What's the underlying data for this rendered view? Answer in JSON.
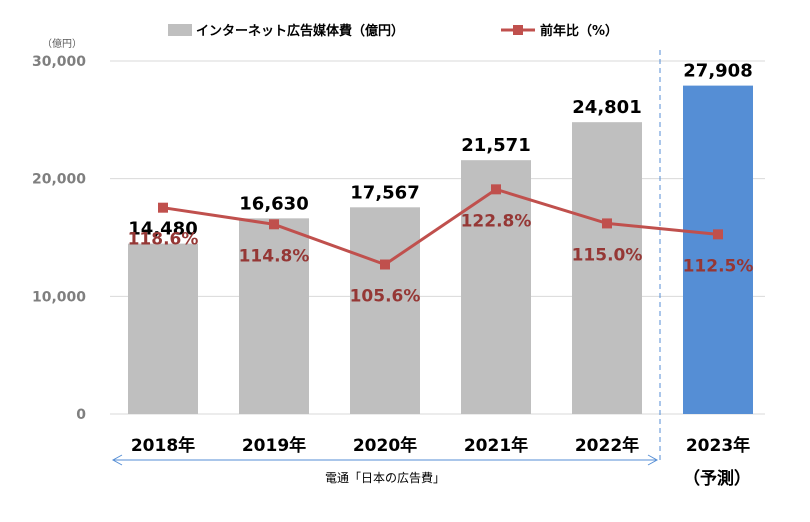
{
  "chart_data": {
    "type": "bar+line",
    "unit_label": "（億円）",
    "categories": [
      "2018年",
      "2019年",
      "2020年",
      "2021年",
      "2022年",
      "2023年"
    ],
    "forecast_note": "（予測）",
    "series": [
      {
        "name": "インターネット広告媒体費（億円）",
        "type": "bar",
        "values": [
          14480,
          16630,
          17567,
          21571,
          24801,
          27908
        ],
        "labels": [
          "14,480",
          "16,630",
          "17,567",
          "21,571",
          "24,801",
          "27,908"
        ],
        "color": "#bfbfbf",
        "forecast_color": "#558ed5"
      },
      {
        "name": "前年比（%）",
        "type": "line",
        "values": [
          118.6,
          114.8,
          105.6,
          122.8,
          115.0,
          112.5
        ],
        "labels": [
          "118.6%",
          "114.8%",
          "105.6%",
          "122.8%",
          "115.0%",
          "112.5%"
        ],
        "color": "#c0504d"
      }
    ],
    "yaxis": {
      "ticks": [
        "0",
        "10,000",
        "20,000",
        "30,000"
      ],
      "tick_values": [
        0,
        10000,
        20000,
        30000
      ],
      "ylim": [
        0,
        30000
      ]
    },
    "source": "電通「日本の広告費」"
  }
}
